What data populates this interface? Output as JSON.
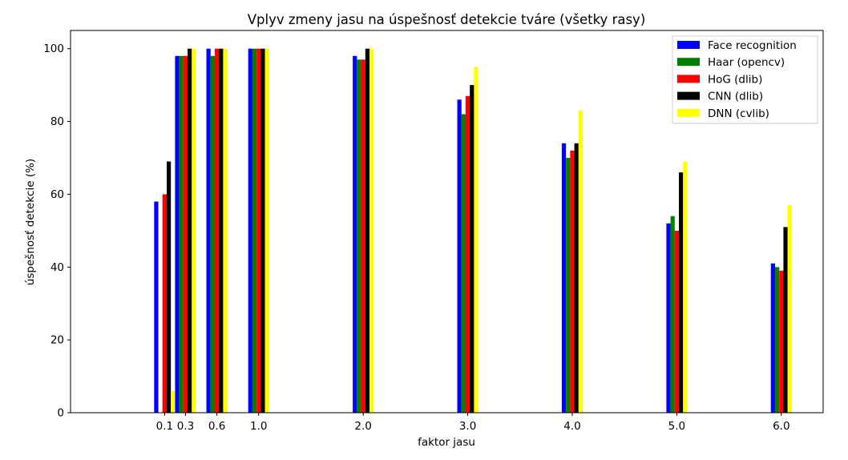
{
  "chart_data": {
    "type": "bar",
    "title": "Vplyv zmeny jasu na úspešnosť detekcie tváre (všetky rasy)",
    "xlabel": "faktor jasu",
    "ylabel": "úspešnosť detekcie (%)",
    "x": [
      0.1,
      0.3,
      0.6,
      1.0,
      2.0,
      3.0,
      4.0,
      5.0,
      6.0
    ],
    "x_tick_labels": [
      "0.1",
      "0.3",
      "0.6",
      "1.0",
      "2.0",
      "3.0",
      "4.0",
      "5.0",
      "6.0"
    ],
    "xlim": [
      -0.8,
      6.4
    ],
    "ylim": [
      0,
      105
    ],
    "y_ticks": [
      0,
      20,
      40,
      60,
      80,
      100
    ],
    "y_tick_labels": [
      "0",
      "20",
      "40",
      "60",
      "80",
      "100"
    ],
    "grid": false,
    "legend_position": "top-right",
    "series": [
      {
        "name": "Face recognition",
        "color": "#0000ff",
        "values": [
          58,
          98,
          100,
          100,
          98,
          86,
          74,
          52,
          41
        ]
      },
      {
        "name": "Haar (opencv)",
        "color": "#008000",
        "values": [
          0,
          98,
          98,
          100,
          97,
          82,
          70,
          54,
          40
        ]
      },
      {
        "name": "HoG (dlib)",
        "color": "#ff0000",
        "values": [
          60,
          98,
          100,
          100,
          97,
          87,
          72,
          50,
          39
        ]
      },
      {
        "name": "CNN (dlib)",
        "color": "#000000",
        "values": [
          69,
          100,
          100,
          100,
          100,
          90,
          74,
          66,
          51
        ]
      },
      {
        "name": "DNN (cvlib)",
        "color": "#ffff00",
        "values": [
          6,
          100,
          100,
          100,
          100,
          95,
          83,
          69,
          57
        ]
      }
    ]
  }
}
